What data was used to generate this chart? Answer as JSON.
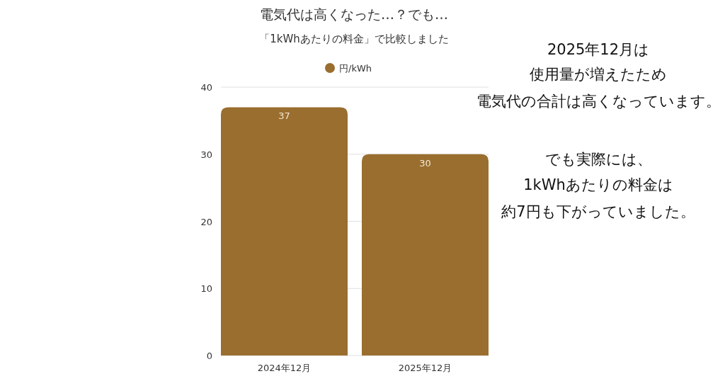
{
  "chart_data": {
    "type": "bar",
    "title": "電気代は高くなった…？でも…",
    "subtitle": "「1kWhあたりの料金」で比較しました",
    "categories": [
      "2024年12月",
      "2025年12月"
    ],
    "series": [
      {
        "name": "円/kWh",
        "color": "#9a6e2f",
        "values": [
          37,
          30
        ]
      }
    ],
    "data_labels": true,
    "ylim": [
      0,
      40
    ],
    "yticks": [
      0,
      10,
      20,
      30,
      40
    ],
    "grid": "y",
    "legend": "top",
    "annotations": [
      "2025年12月は",
      "使用量が増えたため",
      "電気代の合計は高くなっています。",
      "でも実際には、",
      "1kWhあたりの料金は",
      "約7円も下がっていました。"
    ]
  }
}
